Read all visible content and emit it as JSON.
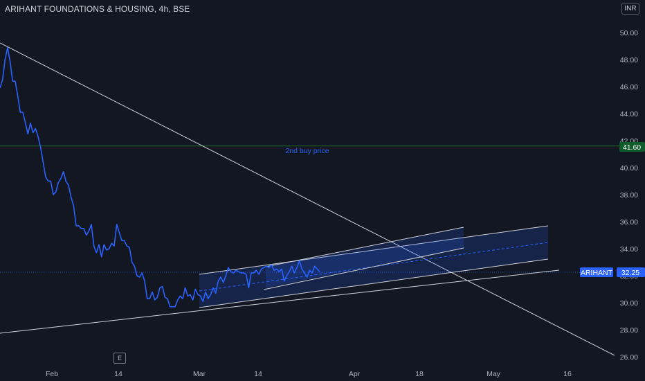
{
  "header": {
    "title": "ARIHANT FOUNDATIONS & HOUSING, 4h, BSE",
    "currency": "INR"
  },
  "event_badge": "E",
  "colors": {
    "background": "#131722",
    "price_line": "#2962ff",
    "trend_line": "#d1d4dc",
    "channel_fill": "#2962ff",
    "support_line": "#1e6b2a",
    "price_tag": "#2962ff",
    "level_tag": "#0f5c2b"
  },
  "chart_data": {
    "type": "line",
    "title": "ARIHANT FOUNDATIONS & HOUSING, 4h, BSE",
    "xlabel": "",
    "ylabel": "",
    "x_ticks": [
      "Feb",
      "14",
      "Mar",
      "14",
      "Apr",
      "18",
      "May",
      "16"
    ],
    "y_ticks": [
      26.0,
      28.0,
      30.0,
      32.0,
      34.0,
      36.0,
      38.0,
      40.0,
      42.0,
      44.0,
      46.0,
      48.0,
      50.0
    ],
    "ylim": [
      25.0,
      51.0
    ],
    "grid": false,
    "series": [
      {
        "name": "ARIHANT",
        "values": [
          45.9,
          46.5,
          48.0,
          48.9,
          47.8,
          46.4,
          46.4,
          45.3,
          44.1,
          44.1,
          43.3,
          42.5,
          43.3,
          42.6,
          42.9,
          42.3,
          41.5,
          40.4,
          39.3,
          39.0,
          39.0,
          38.0,
          38.2,
          38.9,
          39.2,
          39.7,
          39.0,
          38.7,
          37.8,
          37.2,
          35.7,
          35.7,
          35.5,
          35.5,
          35.0,
          35.3,
          35.8,
          34.2,
          33.7,
          34.3,
          33.4,
          34.3,
          33.9,
          34.0,
          34.4,
          34.2,
          35.8,
          35.2,
          34.6,
          34.6,
          34.2,
          34.1,
          33.0,
          32.7,
          32.0,
          31.9,
          32.2,
          31.6,
          30.3,
          30.3,
          30.8,
          30.2,
          30.4,
          31.1,
          31.2,
          30.4,
          30.3,
          29.7,
          29.7,
          29.7,
          30.2,
          30.5,
          30.3,
          31.1,
          30.5,
          30.6,
          30.2,
          31.0,
          30.6,
          30.5,
          30.1,
          30.8,
          30.3,
          30.6,
          31.1,
          30.7,
          31.6,
          31.9,
          31.5,
          32.0,
          32.6,
          32.3,
          32.2,
          32.4,
          32.3,
          32.2,
          32.2,
          32.1,
          31.1,
          32.2,
          32.2,
          32.4,
          32.1,
          32.5,
          32.6,
          32.7,
          32.6,
          32.8,
          32.4,
          32.5,
          32.3,
          32.5,
          31.6,
          32.0,
          32.3,
          32.7,
          32.2,
          32.6,
          33.1,
          32.5,
          32.2,
          31.9,
          32.4,
          32.2,
          32.7,
          32.5,
          32.3
        ],
        "last_value": "32.25"
      }
    ],
    "horizontal_line": {
      "value": 41.6,
      "label": "2nd buy price",
      "tag": "41.60"
    },
    "price_tag": {
      "name": "ARIHANT",
      "value": "32.25"
    }
  }
}
